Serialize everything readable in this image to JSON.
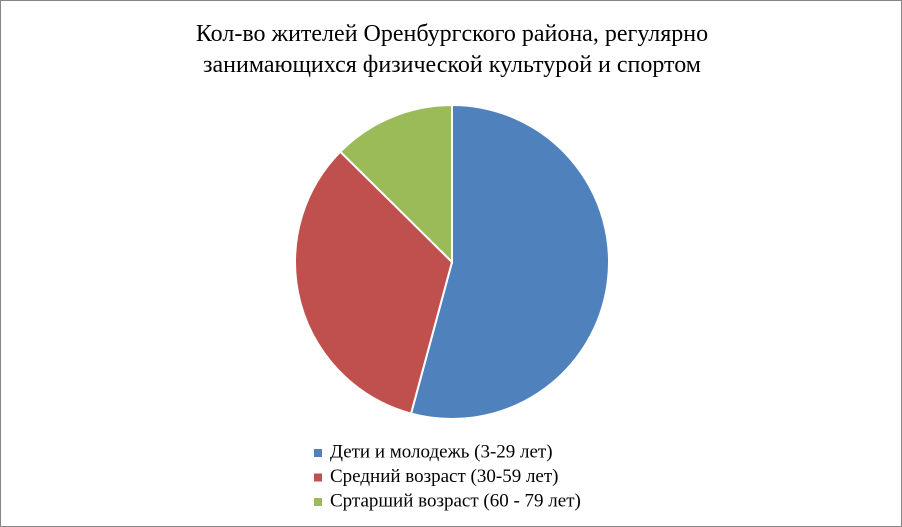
{
  "chart_data": {
    "type": "pie",
    "title": "Кол-во жителей Оренбургского района, регулярно\nзанимающихся физической культурой и спортом",
    "categories": [
      "Дети и молодежь (3-29 лет)",
      "Средний возраст (30-59 лет)",
      "Сртарший возраст (60 - 79 лет)"
    ],
    "values": [
      54.2,
      33.2,
      12.6
    ],
    "colors": [
      "#4f81bd",
      "#c0504d",
      "#9bbb59"
    ],
    "legend": "bottom"
  }
}
